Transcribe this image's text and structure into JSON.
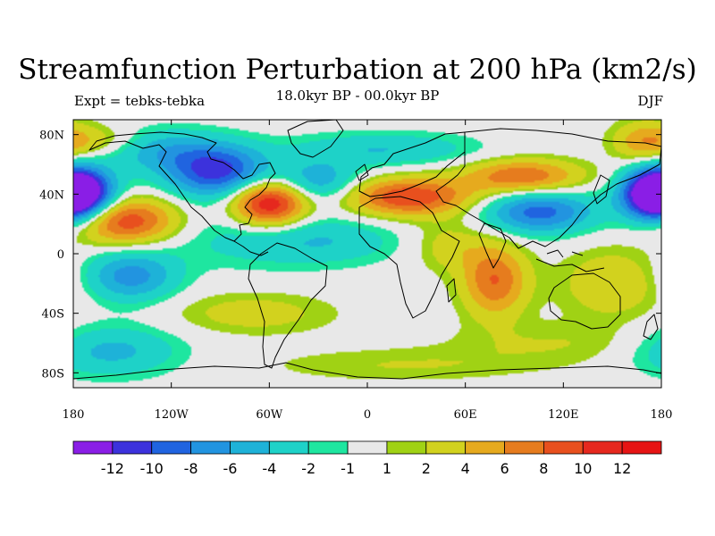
{
  "title": "Streamfunction Perturbation at 200 hPa (km2/s)",
  "subtitle": "18.0kyr BP - 00.0kyr BP",
  "left_label": "Expt = tebks-tebka",
  "right_label": "DJF",
  "axes": {
    "x_ticks": [
      {
        "value": -180,
        "label": "180"
      },
      {
        "value": -120,
        "label": "120W"
      },
      {
        "value": -60,
        "label": "60W"
      },
      {
        "value": 0,
        "label": "0"
      },
      {
        "value": 60,
        "label": "60E"
      },
      {
        "value": 120,
        "label": "120E"
      },
      {
        "value": 180,
        "label": "180"
      }
    ],
    "y_ticks": [
      {
        "value": 80,
        "label": "80N"
      },
      {
        "value": 40,
        "label": "40N"
      },
      {
        "value": 0,
        "label": "0"
      },
      {
        "value": -40,
        "label": "40S"
      },
      {
        "value": -80,
        "label": "80S"
      }
    ],
    "xlim": [
      -180,
      180
    ],
    "ylim": [
      -90,
      90
    ]
  },
  "colorbar": {
    "levels": [
      "-12",
      "-10",
      "-8",
      "-6",
      "-4",
      "-2",
      "-1",
      "1",
      "2",
      "4",
      "6",
      "8",
      "10",
      "12"
    ],
    "colors": [
      "#8a1ee6",
      "#3c32dc",
      "#2064e0",
      "#2294e0",
      "#1eb2d8",
      "#1ed2c8",
      "#1ee6a0",
      "#e8e8e8",
      "#a0d214",
      "#d2d21e",
      "#e6aa1e",
      "#e67c1e",
      "#e8501e",
      "#e6281e",
      "#e61414"
    ]
  },
  "chart_data": {
    "type": "heatmap",
    "anomalies": [
      {
        "lon": -92,
        "lat": 55,
        "amp": -11,
        "rx": 22,
        "ry": 12
      },
      {
        "lon": -178,
        "lat": 40,
        "amp": -13,
        "rx": 16,
        "ry": 12
      },
      {
        "lon": 178,
        "lat": 40,
        "amp": -12,
        "rx": 14,
        "ry": 12
      },
      {
        "lon": 105,
        "lat": 28,
        "amp": -9,
        "rx": 24,
        "ry": 10
      },
      {
        "lon": -30,
        "lat": 48,
        "amp": -6,
        "rx": 18,
        "ry": 10
      },
      {
        "lon": -130,
        "lat": 70,
        "amp": -5,
        "rx": 28,
        "ry": 10
      },
      {
        "lon": 10,
        "lat": 70,
        "amp": -4,
        "rx": 40,
        "ry": 8
      },
      {
        "lon": -145,
        "lat": -15,
        "amp": -7,
        "rx": 20,
        "ry": 12
      },
      {
        "lon": -158,
        "lat": -65,
        "amp": -5,
        "rx": 30,
        "ry": 12
      },
      {
        "lon": -60,
        "lat": 10,
        "amp": -3,
        "rx": 45,
        "ry": 14
      },
      {
        "lon": -20,
        "lat": 8,
        "amp": -2,
        "rx": 30,
        "ry": 10
      },
      {
        "lon": -60,
        "lat": 34,
        "amp": 13,
        "rx": 16,
        "ry": 11
      },
      {
        "lon": -148,
        "lat": 22,
        "amp": 10,
        "rx": 22,
        "ry": 11
      },
      {
        "lon": 25,
        "lat": 38,
        "amp": 10,
        "rx": 28,
        "ry": 9
      },
      {
        "lon": 95,
        "lat": 52,
        "amp": 8,
        "rx": 25,
        "ry": 8
      },
      {
        "lon": 78,
        "lat": -18,
        "amp": 8,
        "rx": 14,
        "ry": 17
      },
      {
        "lon": 50,
        "lat": 5,
        "amp": 3,
        "rx": 16,
        "ry": 12
      },
      {
        "lon": 150,
        "lat": -20,
        "amp": 4,
        "rx": 22,
        "ry": 16
      },
      {
        "lon": -165,
        "lat": 75,
        "amp": 4,
        "rx": 20,
        "ry": 8
      },
      {
        "lon": 170,
        "lat": 75,
        "amp": 5,
        "rx": 14,
        "ry": 10
      },
      {
        "lon": -70,
        "lat": -40,
        "amp": 3,
        "rx": 35,
        "ry": 10
      },
      {
        "lon": 120,
        "lat": -60,
        "amp": 2,
        "rx": 50,
        "ry": 10
      },
      {
        "lon": 20,
        "lat": -75,
        "amp": 2,
        "rx": 60,
        "ry": 8
      }
    ]
  }
}
